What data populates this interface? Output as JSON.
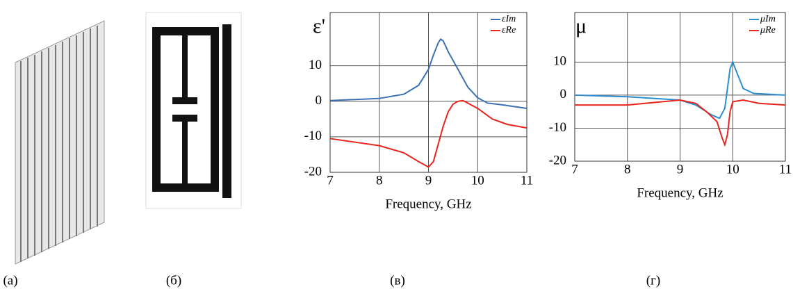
{
  "panels": {
    "labels": [
      "(а)",
      "(б)",
      "(в)",
      "(г)"
    ]
  },
  "chart_data": [
    {
      "type": "line",
      "ylabel": "ε'",
      "xlabel": "Frequency, GHz",
      "xlim": [
        7,
        11
      ],
      "xticks": [
        7,
        8,
        9,
        10,
        11
      ],
      "ylim": [
        -20,
        25
      ],
      "yticks": [
        -20,
        -10,
        0,
        10
      ],
      "grid": true,
      "legend": "upper right",
      "series": [
        {
          "name": "εIm",
          "color": "#3a6fb5",
          "x": [
            7,
            8,
            8.5,
            8.8,
            9,
            9.1,
            9.2,
            9.25,
            9.3,
            9.4,
            9.6,
            9.8,
            10,
            10.2,
            10.5,
            11
          ],
          "values": [
            0.2,
            0.8,
            2,
            4.5,
            9,
            13,
            16.5,
            17.5,
            17,
            14,
            9,
            4,
            1,
            -0.5,
            -1,
            -2
          ]
        },
        {
          "name": "εRe",
          "color": "#e8241c",
          "x": [
            7,
            7.5,
            8,
            8.5,
            8.8,
            9,
            9.1,
            9.2,
            9.3,
            9.4,
            9.5,
            9.6,
            9.7,
            9.8,
            10,
            10.3,
            10.6,
            11
          ],
          "values": [
            -10.5,
            -11.5,
            -12.5,
            -14.5,
            -17,
            -18.5,
            -17,
            -12,
            -7,
            -3,
            -0.8,
            0,
            0.2,
            -0.5,
            -2,
            -5,
            -6.5,
            -7.5
          ]
        }
      ]
    },
    {
      "type": "line",
      "ylabel": "μ",
      "xlabel": "Frequency, GHz",
      "xlim": [
        7,
        11
      ],
      "xticks": [
        7,
        8,
        9,
        10,
        11
      ],
      "ylim": [
        -20,
        25
      ],
      "yticks": [
        -20,
        -10,
        0,
        10
      ],
      "grid": true,
      "legend": "upper right",
      "series": [
        {
          "name": "μIm",
          "color": "#2a8fd0",
          "x": [
            7,
            8,
            9,
            9.3,
            9.6,
            9.75,
            9.85,
            9.9,
            9.95,
            10,
            10.1,
            10.2,
            10.4,
            11
          ],
          "values": [
            0,
            -0.5,
            -1.5,
            -3,
            -6,
            -7,
            -4,
            2,
            8,
            10,
            6,
            2,
            0.5,
            0
          ]
        },
        {
          "name": "μRe",
          "color": "#e8241c",
          "x": [
            7,
            8,
            9,
            9.3,
            9.5,
            9.7,
            9.8,
            9.85,
            9.9,
            9.95,
            10,
            10.2,
            10.5,
            11
          ],
          "values": [
            -3,
            -3,
            -1.5,
            -2.5,
            -5,
            -8,
            -13,
            -15,
            -12,
            -5,
            -2,
            -1.5,
            -2.5,
            -3
          ]
        }
      ]
    }
  ]
}
